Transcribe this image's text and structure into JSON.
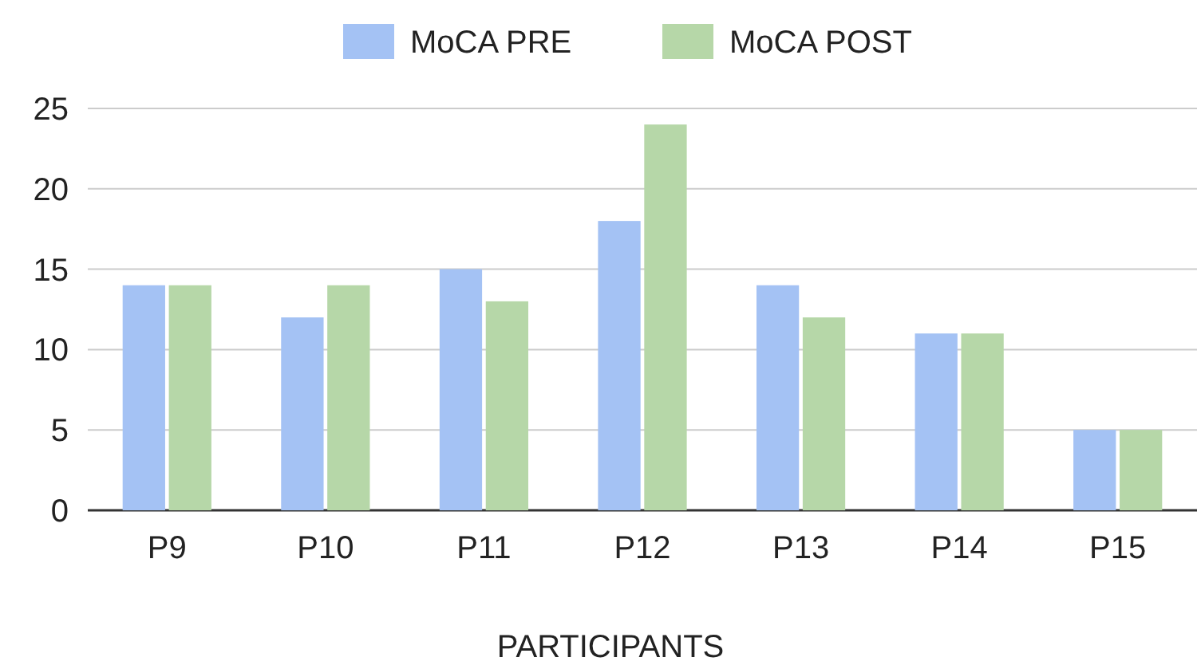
{
  "chart_data": {
    "type": "bar",
    "xlabel": "PARTICIPANTS",
    "categories": [
      "P9",
      "P10",
      "P11",
      "P12",
      "P13",
      "P14",
      "P15"
    ],
    "series": [
      {
        "name": "MoCA PRE",
        "color": "#a4c2f4",
        "values": [
          14,
          12,
          15,
          18,
          14,
          11,
          5
        ]
      },
      {
        "name": "MoCA POST",
        "color": "#b6d7a8",
        "values": [
          14,
          14,
          13,
          24,
          12,
          11,
          5
        ]
      }
    ],
    "ylim": [
      0,
      25
    ],
    "yticks": [
      0,
      5,
      10,
      15,
      20,
      25
    ],
    "grid": "y",
    "legend": "top"
  }
}
